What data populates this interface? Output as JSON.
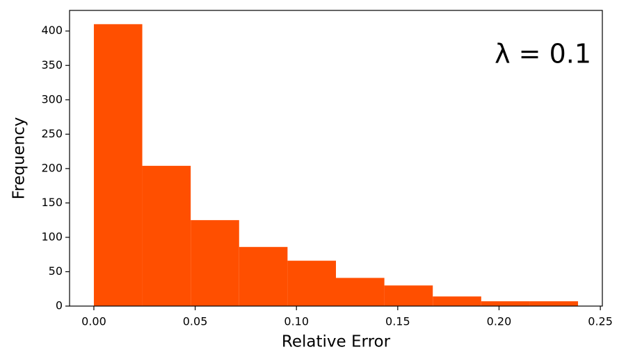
{
  "chart_data": {
    "type": "histogram",
    "xlabel": "Relative Error",
    "ylabel": "Frequency",
    "annotation": "λ = 0.1",
    "bins": [
      0,
      0.0239,
      0.0478,
      0.0717,
      0.0956,
      0.1195,
      0.1434,
      0.1673,
      0.1912,
      0.2151,
      0.239
    ],
    "values": [
      410,
      204,
      125,
      86,
      66,
      41,
      30,
      14,
      7,
      7
    ],
    "color": "#ff4f00",
    "xlim": [
      -0.012,
      0.251
    ],
    "xticks": [
      {
        "value": 0,
        "label": "0.00"
      },
      {
        "value": 0.05,
        "label": "0.05"
      },
      {
        "value": 0.1,
        "label": "0.10"
      },
      {
        "value": 0.15,
        "label": "0.15"
      },
      {
        "value": 0.2,
        "label": "0.20"
      },
      {
        "value": 0.25,
        "label": "0.25"
      }
    ],
    "ylim": [
      0,
      430
    ],
    "yticks": [
      0,
      50,
      100,
      150,
      200,
      250,
      300,
      350,
      400
    ]
  }
}
